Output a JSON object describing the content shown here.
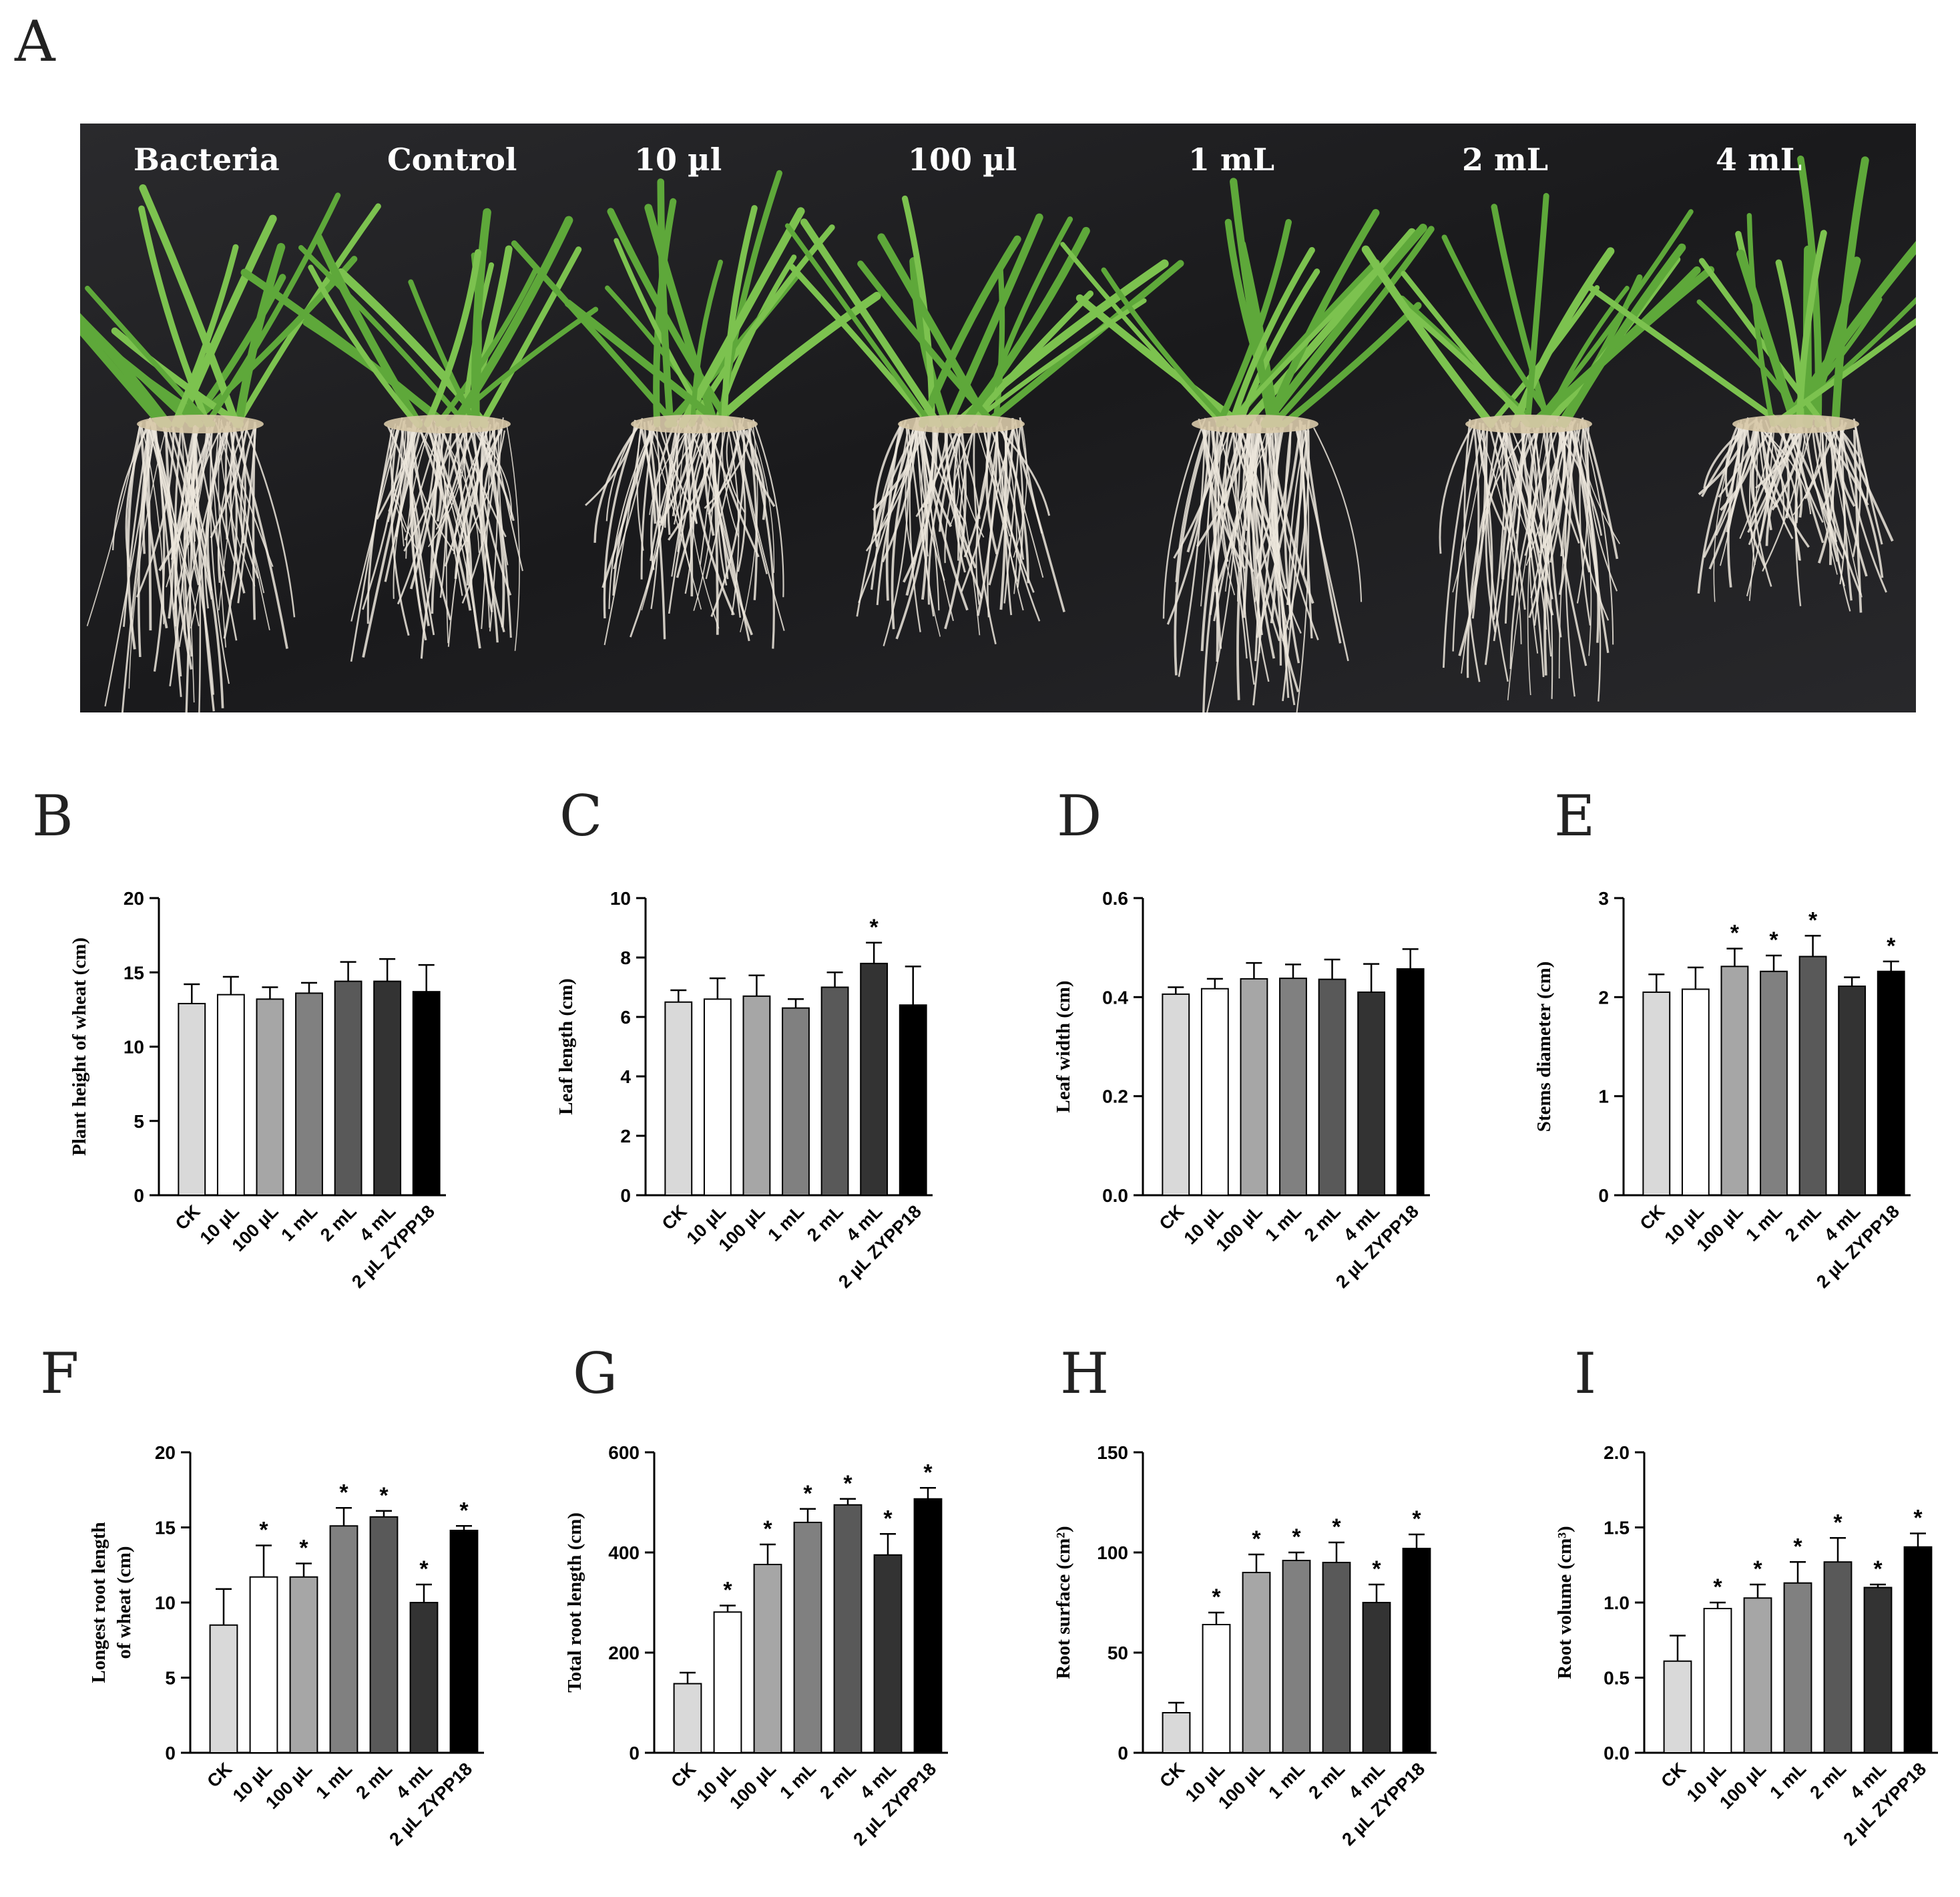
{
  "panels": {
    "A": "A",
    "B": "B",
    "C": "C",
    "D": "D",
    "E": "E",
    "F": "F",
    "G": "G",
    "H": "H",
    "I": "I"
  },
  "photo": {
    "labels": [
      "Bacteria",
      "Control",
      "10 µl",
      "100 µl",
      "1 mL",
      "2 mL",
      "4 mL"
    ]
  },
  "colors": {
    "bars": [
      "#d9d9d9",
      "#ffffff",
      "#a6a6a6",
      "#808080",
      "#595959",
      "#333333",
      "#000000"
    ],
    "background_cloth": "#1c1c1e",
    "leaf": "#5ea83a",
    "root": "#ece6dc"
  },
  "chart_data": [
    {
      "panel": "B",
      "type": "bar",
      "ylabel": "Plant height of wheat (cm)",
      "categories": [
        "CK",
        "10 µL",
        "100 µL",
        "1 mL",
        "2 mL",
        "4 mL",
        "2 µL ZYPP18"
      ],
      "values": [
        12.9,
        13.5,
        13.2,
        13.6,
        14.4,
        14.4,
        13.7
      ],
      "errors": [
        1.3,
        1.2,
        0.8,
        0.7,
        1.3,
        1.5,
        1.8
      ],
      "significance": [
        "",
        "",
        "",
        "",
        "",
        "",
        ""
      ],
      "ylim": [
        0,
        20
      ],
      "yticks": [
        "0",
        "5",
        "10",
        "15",
        "20"
      ]
    },
    {
      "panel": "C",
      "type": "bar",
      "ylabel": "Leaf length (cm)",
      "categories": [
        "CK",
        "10 µL",
        "100 µL",
        "1 mL",
        "2 mL",
        "4 mL",
        "2 µL ZYPP18"
      ],
      "values": [
        6.5,
        6.6,
        6.7,
        6.3,
        7.0,
        7.8,
        6.4
      ],
      "errors": [
        0.4,
        0.7,
        0.7,
        0.3,
        0.5,
        0.7,
        1.3
      ],
      "significance": [
        "",
        "",
        "",
        "",
        "",
        "*",
        ""
      ],
      "ylim": [
        0,
        10
      ],
      "yticks": [
        "0",
        "2",
        "4",
        "6",
        "8",
        "10"
      ]
    },
    {
      "panel": "D",
      "type": "bar",
      "ylabel": "Leaf width (cm)",
      "categories": [
        "CK",
        "10 µL",
        "100 µL",
        "1 mL",
        "2 mL",
        "4 mL",
        "2 µL ZYPP18"
      ],
      "values": [
        0.406,
        0.417,
        0.437,
        0.438,
        0.436,
        0.41,
        0.457
      ],
      "errors": [
        0.014,
        0.02,
        0.032,
        0.028,
        0.04,
        0.057,
        0.04
      ],
      "significance": [
        "",
        "",
        "",
        "",
        "",
        "",
        ""
      ],
      "ylim": [
        0,
        0.6
      ],
      "yticks": [
        "0.0",
        "0.2",
        "0.4",
        "0.6"
      ]
    },
    {
      "panel": "E",
      "type": "bar",
      "ylabel": "Stems diameter (cm)",
      "categories": [
        "CK",
        "10 µL",
        "100 µL",
        "1 mL",
        "2 mL",
        "4 mL",
        "2 µL ZYPP18"
      ],
      "values": [
        2.05,
        2.08,
        2.31,
        2.26,
        2.41,
        2.11,
        2.26
      ],
      "errors": [
        0.18,
        0.22,
        0.18,
        0.16,
        0.21,
        0.09,
        0.1
      ],
      "significance": [
        "",
        "",
        "*",
        "*",
        "*",
        "",
        "*"
      ],
      "ylim": [
        0,
        3
      ],
      "yticks": [
        "0",
        "1",
        "2",
        "3"
      ]
    },
    {
      "panel": "F",
      "type": "bar",
      "ylabel": "Longest root length|of wheat (cm)",
      "categories": [
        "CK",
        "10 µL",
        "100 µL",
        "1 mL",
        "2 mL",
        "4 mL",
        "2 µL ZYPP18"
      ],
      "values": [
        8.5,
        11.7,
        11.7,
        15.1,
        15.7,
        10.0,
        14.8
      ],
      "errors": [
        2.4,
        2.1,
        0.9,
        1.2,
        0.4,
        1.2,
        0.3
      ],
      "significance": [
        "",
        "*",
        "*",
        "*",
        "*",
        "*",
        "*"
      ],
      "ylim": [
        0,
        20
      ],
      "yticks": [
        "0",
        "5",
        "10",
        "15",
        "20"
      ]
    },
    {
      "panel": "G",
      "type": "bar",
      "ylabel": "Total root length (cm)",
      "categories": [
        "CK",
        "10 µL",
        "100 µL",
        "1 mL",
        "2 mL",
        "4 mL",
        "2 µL ZYPP18"
      ],
      "values": [
        138,
        281,
        376,
        460,
        495,
        395,
        507
      ],
      "errors": [
        22,
        13,
        40,
        27,
        12,
        42,
        22
      ],
      "significance": [
        "",
        "*",
        "*",
        "*",
        "*",
        "*",
        "*"
      ],
      "ylim": [
        0,
        600
      ],
      "yticks": [
        "0",
        "200",
        "400",
        "600"
      ]
    },
    {
      "panel": "H",
      "type": "bar",
      "ylabel": "Root surface (cm²)",
      "categories": [
        "CK",
        "10 µL",
        "100 µL",
        "1 mL",
        "2 mL",
        "4 mL",
        "2 µL ZYPP18"
      ],
      "values": [
        20,
        64,
        90,
        96,
        95,
        75,
        102
      ],
      "errors": [
        5,
        6,
        9,
        4,
        10,
        9,
        7
      ],
      "significance": [
        "",
        "*",
        "*",
        "*",
        "*",
        "*",
        "*"
      ],
      "ylim": [
        0,
        150
      ],
      "yticks": [
        "0",
        "50",
        "100",
        "150"
      ]
    },
    {
      "panel": "I",
      "type": "bar",
      "ylabel": "Root volume (cm³)",
      "categories": [
        "CK",
        "10 µL",
        "100 µL",
        "1 mL",
        "2 mL",
        "4 mL",
        "2 µL ZYPP18"
      ],
      "values": [
        0.61,
        0.96,
        1.03,
        1.13,
        1.27,
        1.1,
        1.37
      ],
      "errors": [
        0.17,
        0.04,
        0.09,
        0.14,
        0.16,
        0.02,
        0.09
      ],
      "significance": [
        "",
        "*",
        "*",
        "*",
        "*",
        "*",
        "*"
      ],
      "ylim": [
        0,
        2.0
      ],
      "yticks": [
        "0.0",
        "0.5",
        "1.0",
        "1.5",
        "2.0"
      ]
    }
  ]
}
